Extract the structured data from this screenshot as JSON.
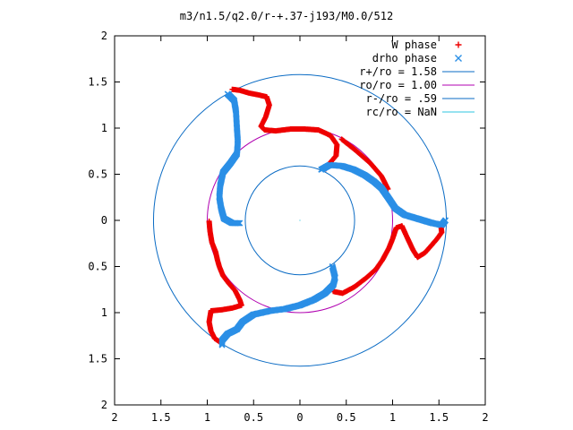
{
  "chart_data": {
    "type": "scatter",
    "title": "m3/n1.5/q2.0/r-+.37-j193/M0.0/512",
    "xlabel": "",
    "ylabel": "",
    "xlim": [
      -2,
      2
    ],
    "ylim": [
      -2,
      2
    ],
    "x_ticks": [
      -2,
      -1.5,
      -1,
      -0.5,
      0,
      0.5,
      1,
      1.5,
      2
    ],
    "y_ticks": [
      -2,
      -1.5,
      -1,
      -0.5,
      0,
      0.5,
      1,
      1.5,
      2
    ],
    "x_tick_labels": [
      "2",
      "1.5",
      "1",
      "0.5",
      "0",
      "0.5",
      "1",
      "1.5",
      "2"
    ],
    "y_tick_labels": [
      "2",
      "1.5",
      "1",
      "0.5",
      "0",
      "0.5",
      "1",
      "1.5",
      "2"
    ],
    "grid": false,
    "legend_position": "top-right",
    "circles": [
      {
        "name": "r+/ro = 1.58",
        "r": 1.58,
        "color": "#0a6bc4"
      },
      {
        "name": "ro/ro = 1.00",
        "r": 1.0,
        "color": "#b000b0"
      },
      {
        "name": "r-/ro = .59",
        "r": 0.59,
        "color": "#0a6bc4"
      },
      {
        "name": "rc/ro = NaN",
        "r": null,
        "color": "#2fc4e0"
      }
    ],
    "series": [
      {
        "name": "W phase",
        "marker": "plus",
        "color": "#ee0000",
        "points": [
          [
            -0.73,
            1.42
          ],
          [
            -0.65,
            1.41
          ],
          [
            -0.55,
            1.38
          ],
          [
            -0.45,
            1.36
          ],
          [
            -0.36,
            1.34
          ],
          [
            -0.33,
            1.25
          ],
          [
            -0.37,
            1.12
          ],
          [
            -0.42,
            1.02
          ],
          [
            -0.38,
            0.98
          ],
          [
            -0.26,
            0.97
          ],
          [
            -0.1,
            0.99
          ],
          [
            0.05,
            0.99
          ],
          [
            0.2,
            0.98
          ],
          [
            0.33,
            0.92
          ],
          [
            0.4,
            0.82
          ],
          [
            0.39,
            0.7
          ],
          [
            0.33,
            0.63
          ],
          [
            0.28,
            0.56
          ],
          [
            0.45,
            0.88
          ],
          [
            0.6,
            0.76
          ],
          [
            0.76,
            0.62
          ],
          [
            0.88,
            0.48
          ],
          [
            0.95,
            0.34
          ],
          [
            1.52,
            -0.05
          ],
          [
            1.53,
            -0.13
          ],
          [
            1.48,
            -0.2
          ],
          [
            1.42,
            -0.27
          ],
          [
            1.35,
            -0.35
          ],
          [
            1.27,
            -0.4
          ],
          [
            1.22,
            -0.32
          ],
          [
            1.15,
            -0.17
          ],
          [
            1.1,
            -0.06
          ],
          [
            1.04,
            -0.08
          ],
          [
            1.0,
            -0.2
          ],
          [
            0.96,
            -0.3
          ],
          [
            0.89,
            -0.43
          ],
          [
            0.82,
            -0.53
          ],
          [
            0.72,
            -0.62
          ],
          [
            0.59,
            -0.72
          ],
          [
            0.46,
            -0.79
          ],
          [
            0.36,
            -0.77
          ],
          [
            -0.98,
            -0.01
          ],
          [
            -0.97,
            -0.12
          ],
          [
            -0.95,
            -0.24
          ],
          [
            -0.91,
            -0.34
          ],
          [
            -0.89,
            -0.43
          ],
          [
            -0.87,
            -0.5
          ],
          [
            -0.83,
            -0.6
          ],
          [
            -0.77,
            -0.68
          ],
          [
            -0.7,
            -0.76
          ],
          [
            -0.65,
            -0.86
          ],
          [
            -0.63,
            -0.92
          ],
          [
            -0.73,
            -0.95
          ],
          [
            -0.85,
            -0.97
          ],
          [
            -0.96,
            -0.98
          ],
          [
            -0.98,
            -1.1
          ],
          [
            -0.96,
            -1.2
          ],
          [
            -0.92,
            -1.28
          ],
          [
            -0.86,
            -1.32
          ]
        ]
      },
      {
        "name": "drho phase",
        "marker": "cross",
        "color": "#2b8fe6",
        "points": [
          [
            -0.78,
            1.37
          ],
          [
            -0.71,
            1.3
          ],
          [
            -0.69,
            1.18
          ],
          [
            -0.68,
            1.0
          ],
          [
            -0.67,
            0.85
          ],
          [
            -0.68,
            0.72
          ],
          [
            -0.75,
            0.62
          ],
          [
            -0.83,
            0.52
          ],
          [
            -0.86,
            0.38
          ],
          [
            -0.87,
            0.25
          ],
          [
            -0.85,
            0.13
          ],
          [
            -0.82,
            0.02
          ],
          [
            -0.73,
            -0.03
          ],
          [
            -0.65,
            -0.03
          ],
          [
            0.23,
            0.55
          ],
          [
            0.32,
            0.6
          ],
          [
            0.45,
            0.59
          ],
          [
            0.58,
            0.55
          ],
          [
            0.7,
            0.49
          ],
          [
            0.8,
            0.42
          ],
          [
            0.88,
            0.35
          ],
          [
            0.95,
            0.25
          ],
          [
            1.03,
            0.13
          ],
          [
            1.13,
            0.06
          ],
          [
            1.23,
            0.03
          ],
          [
            1.33,
            0.0
          ],
          [
            1.43,
            -0.03
          ],
          [
            1.53,
            -0.05
          ],
          [
            1.57,
            0.0
          ],
          [
            0.35,
            -0.5
          ],
          [
            0.38,
            -0.62
          ],
          [
            0.36,
            -0.7
          ],
          [
            0.27,
            -0.79
          ],
          [
            0.15,
            -0.86
          ],
          [
            0.0,
            -0.92
          ],
          [
            -0.16,
            -0.96
          ],
          [
            -0.32,
            -0.98
          ],
          [
            -0.5,
            -1.02
          ],
          [
            -0.62,
            -1.1
          ],
          [
            -0.68,
            -1.18
          ],
          [
            -0.78,
            -1.23
          ],
          [
            -0.84,
            -1.3
          ],
          [
            -0.84,
            -1.35
          ]
        ]
      }
    ],
    "legend": [
      {
        "label": "W phase",
        "kind": "plus",
        "color": "#ee0000"
      },
      {
        "label": "drho phase",
        "kind": "cross",
        "color": "#2b8fe6"
      },
      {
        "label": "r+/ro = 1.58",
        "kind": "line",
        "color": "#0a6bc4"
      },
      {
        "label": "ro/ro = 1.00",
        "kind": "line",
        "color": "#b000b0"
      },
      {
        "label": "r-/ro = .59",
        "kind": "line",
        "color": "#0a6bc4"
      },
      {
        "label": "rc/ro = NaN",
        "kind": "line",
        "color": "#2fc4e0"
      }
    ]
  }
}
